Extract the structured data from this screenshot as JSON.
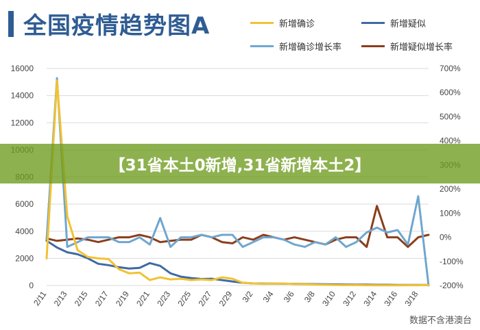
{
  "title": "全国疫情趋势图A",
  "banner": "【31省本土0新增,31省新增本土2】",
  "watermark": "数据不含港澳台",
  "legend": [
    {
      "label": "新增确诊",
      "color": "#f2c232"
    },
    {
      "label": "新增疑似",
      "color": "#3e6aa3"
    },
    {
      "label": "新增确诊增长率",
      "color": "#6fa6cf"
    },
    {
      "label": "新增疑似增长率",
      "color": "#8a3e1c"
    }
  ],
  "chart_data": {
    "type": "line",
    "x_tick_labels": [
      "2/11",
      "2/13",
      "2/15",
      "2/17",
      "2/19",
      "2/21",
      "2/23",
      "2/25",
      "2/27",
      "2/29",
      "3/2",
      "3/4",
      "3/6",
      "3/8",
      "3/10",
      "3/12",
      "3/14",
      "3/16",
      "3/18"
    ],
    "x": [
      "2/11",
      "2/12",
      "2/13",
      "2/14",
      "2/15",
      "2/16",
      "2/17",
      "2/18",
      "2/19",
      "2/20",
      "2/21",
      "2/22",
      "2/23",
      "2/24",
      "2/25",
      "2/26",
      "2/27",
      "2/28",
      "2/29",
      "3/1",
      "3/2",
      "3/3",
      "3/4",
      "3/5",
      "3/6",
      "3/7",
      "3/8",
      "3/9",
      "3/10",
      "3/11",
      "3/12",
      "3/13",
      "3/14",
      "3/15",
      "3/16",
      "3/17",
      "3/18",
      "3/19"
    ],
    "y_left": {
      "min": 0,
      "max": 16000,
      "ticks": [
        0,
        2000,
        4000,
        6000,
        8000,
        10000,
        12000,
        14000,
        16000
      ]
    },
    "y_right": {
      "min": -200,
      "max": 700,
      "ticks": [
        "-200%",
        "-100%",
        "0%",
        "100%",
        "200%",
        "300%",
        "400%",
        "500%",
        "600%",
        "700%"
      ]
    },
    "series": [
      {
        "name": "新增确诊",
        "axis": "left",
        "color": "#f2c232",
        "values": [
          2000,
          15100,
          5100,
          2600,
          2100,
          2000,
          1950,
          1200,
          900,
          950,
          400,
          600,
          450,
          500,
          400,
          450,
          400,
          600,
          500,
          200,
          150,
          120,
          140,
          140,
          110,
          100,
          70,
          50,
          40,
          30,
          30,
          20,
          15,
          10,
          15,
          20,
          20,
          30
        ]
      },
      {
        "name": "新增疑似",
        "axis": "left",
        "color": "#3e6aa3",
        "values": [
          3300,
          2800,
          2450,
          2300,
          2000,
          1600,
          1500,
          1350,
          1250,
          1300,
          1650,
          1450,
          900,
          650,
          550,
          480,
          500,
          400,
          300,
          200,
          150,
          140,
          140,
          130,
          120,
          110,
          100,
          90,
          80,
          70,
          60,
          60,
          50,
          50,
          40,
          40,
          40,
          40
        ]
      },
      {
        "name": "新增确诊增长率",
        "axis": "right",
        "color": "#6fa6cf",
        "values": [
          -10,
          660,
          -40,
          -20,
          0,
          0,
          0,
          -20,
          -20,
          0,
          -30,
          80,
          -40,
          0,
          0,
          10,
          0,
          10,
          10,
          -40,
          -20,
          0,
          0,
          -10,
          -30,
          -40,
          -20,
          -30,
          0,
          -40,
          -20,
          20,
          40,
          20,
          30,
          -30,
          170,
          -200
        ]
      },
      {
        "name": "新增疑似增长率",
        "axis": "right",
        "color": "#8a3e1c",
        "values": [
          -5,
          -15,
          -10,
          -5,
          -10,
          -20,
          -10,
          0,
          0,
          10,
          0,
          -20,
          -15,
          -10,
          -10,
          10,
          0,
          -20,
          -25,
          0,
          -10,
          10,
          0,
          -10,
          0,
          -10,
          -20,
          -30,
          -10,
          0,
          0,
          -40,
          130,
          0,
          0,
          -40,
          0,
          10
        ]
      }
    ]
  }
}
